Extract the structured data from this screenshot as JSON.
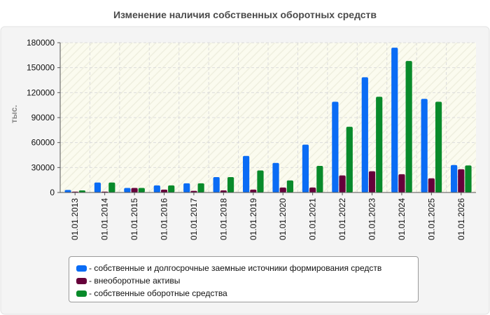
{
  "chart_data": {
    "type": "bar",
    "title": "Изменение наличия собственных оборотных средств",
    "ylabel": "тыс.",
    "xlabel": "",
    "ylim": [
      0,
      180000
    ],
    "yticks": [
      0,
      30000,
      60000,
      90000,
      120000,
      150000,
      180000
    ],
    "grid": true,
    "legend_position": "bottom",
    "categories": [
      "01.01.2013",
      "01.01.2014",
      "01.01.2015",
      "01.01.2016",
      "01.01.2017",
      "01.01.2018",
      "01.01.2019",
      "01.01.2020",
      "01.01.2021",
      "01.01.2022",
      "01.01.2023",
      "01.01.2024",
      "01.01.2025",
      "01.01.2026"
    ],
    "series": [
      {
        "name": "- собственные и долгосрочные заемные источники формирования средств",
        "color": "#0a6cf5",
        "values": [
          3000,
          12000,
          5500,
          8500,
          11000,
          18500,
          44000,
          35500,
          57500,
          109000,
          138500,
          174000,
          112500,
          33000
        ]
      },
      {
        "name": "- внеоборотные активы",
        "color": "#66003a",
        "values": [
          1000,
          1000,
          5500,
          3500,
          2000,
          2500,
          3500,
          6000,
          6000,
          20500,
          25500,
          22000,
          17000,
          28000
        ]
      },
      {
        "name": "- собственные оборотные средства",
        "color": "#088a2a",
        "values": [
          2500,
          12000,
          5500,
          8500,
          11000,
          18500,
          26500,
          14500,
          32000,
          79000,
          115000,
          158000,
          109000,
          32500
        ]
      }
    ]
  }
}
